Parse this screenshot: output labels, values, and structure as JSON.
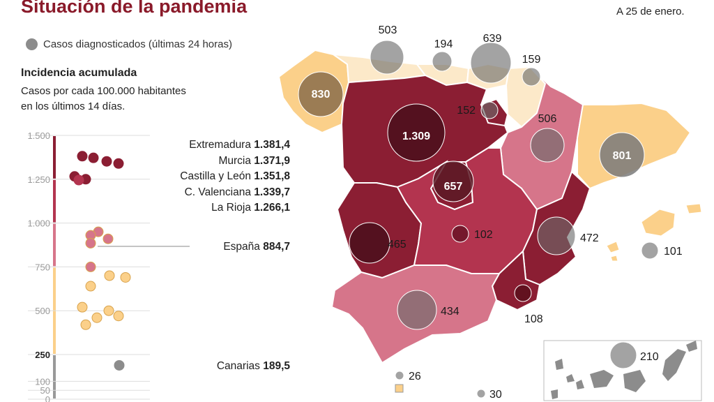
{
  "header": {
    "title": "Situación de la pandemia",
    "date": "A 25 de enero."
  },
  "legend": {
    "cases_label": "Casos diagnosticados (últimas 24 horas)",
    "cases_color": "#8c8c8c"
  },
  "incidence": {
    "title": "Incidencia acumulada",
    "subtitle_line1": "Casos por cada 100.000 habitantes",
    "subtitle_line2": "en los últimos 14 días."
  },
  "colors": {
    "very_high": "#8b1e33",
    "high": "#b3344f",
    "mid": "#d6758a",
    "low": "#fbd08a",
    "lowest": "#fce9c9",
    "bubble": "#5c5c5c"
  },
  "scale": {
    "ticks": [
      "1.500",
      "1.250",
      "1.000",
      "750",
      "500",
      "250",
      "100",
      "50",
      "0"
    ]
  },
  "ranking": [
    {
      "name": "Extremadura",
      "value": "1.381,4"
    },
    {
      "name": "Murcia",
      "value": "1.371,9"
    },
    {
      "name": "Castilla y León",
      "value": "1.351,8"
    },
    {
      "name": "C. Valenciana",
      "value": "1.339,7"
    },
    {
      "name": "La Rioja",
      "value": "1.266,1"
    }
  ],
  "spain": {
    "name": "España",
    "value": "884,7"
  },
  "canarias": {
    "name": "Canarias",
    "value": "189,5"
  },
  "chart_data": {
    "type": "scatter",
    "title": "Incidencia acumulada",
    "ylim": [
      0,
      1500
    ],
    "incidence_values": [
      1381.4,
      1371.9,
      1351.8,
      1339.7,
      1266.1,
      1250,
      1245,
      950,
      930,
      910,
      885,
      750,
      700,
      690,
      640,
      520,
      500,
      470,
      460,
      420,
      189.5
    ]
  },
  "map": {
    "case_labels": [
      {
        "region": "Galicia",
        "value": "830"
      },
      {
        "region": "Asturias",
        "value": "503"
      },
      {
        "region": "Cantabria",
        "value": "194"
      },
      {
        "region": "País Vasco",
        "value": "639"
      },
      {
        "region": "Navarra",
        "value": "159"
      },
      {
        "region": "La Rioja",
        "value": "152"
      },
      {
        "region": "Castilla y León",
        "value": "1.309"
      },
      {
        "region": "Aragón",
        "value": "506"
      },
      {
        "region": "Cataluña",
        "value": "801"
      },
      {
        "region": "Madrid",
        "value": "657"
      },
      {
        "region": "Extremadura",
        "value": "465"
      },
      {
        "region": "Castilla-La Mancha",
        "value": "102"
      },
      {
        "region": "C. Valenciana",
        "value": "472"
      },
      {
        "region": "Baleares",
        "value": "101"
      },
      {
        "region": "Andalucía",
        "value": "434"
      },
      {
        "region": "Murcia",
        "value": "108"
      },
      {
        "region": "Ceuta",
        "value": "26"
      },
      {
        "region": "Melilla",
        "value": "30"
      },
      {
        "region": "Canarias",
        "value": "210"
      }
    ]
  }
}
